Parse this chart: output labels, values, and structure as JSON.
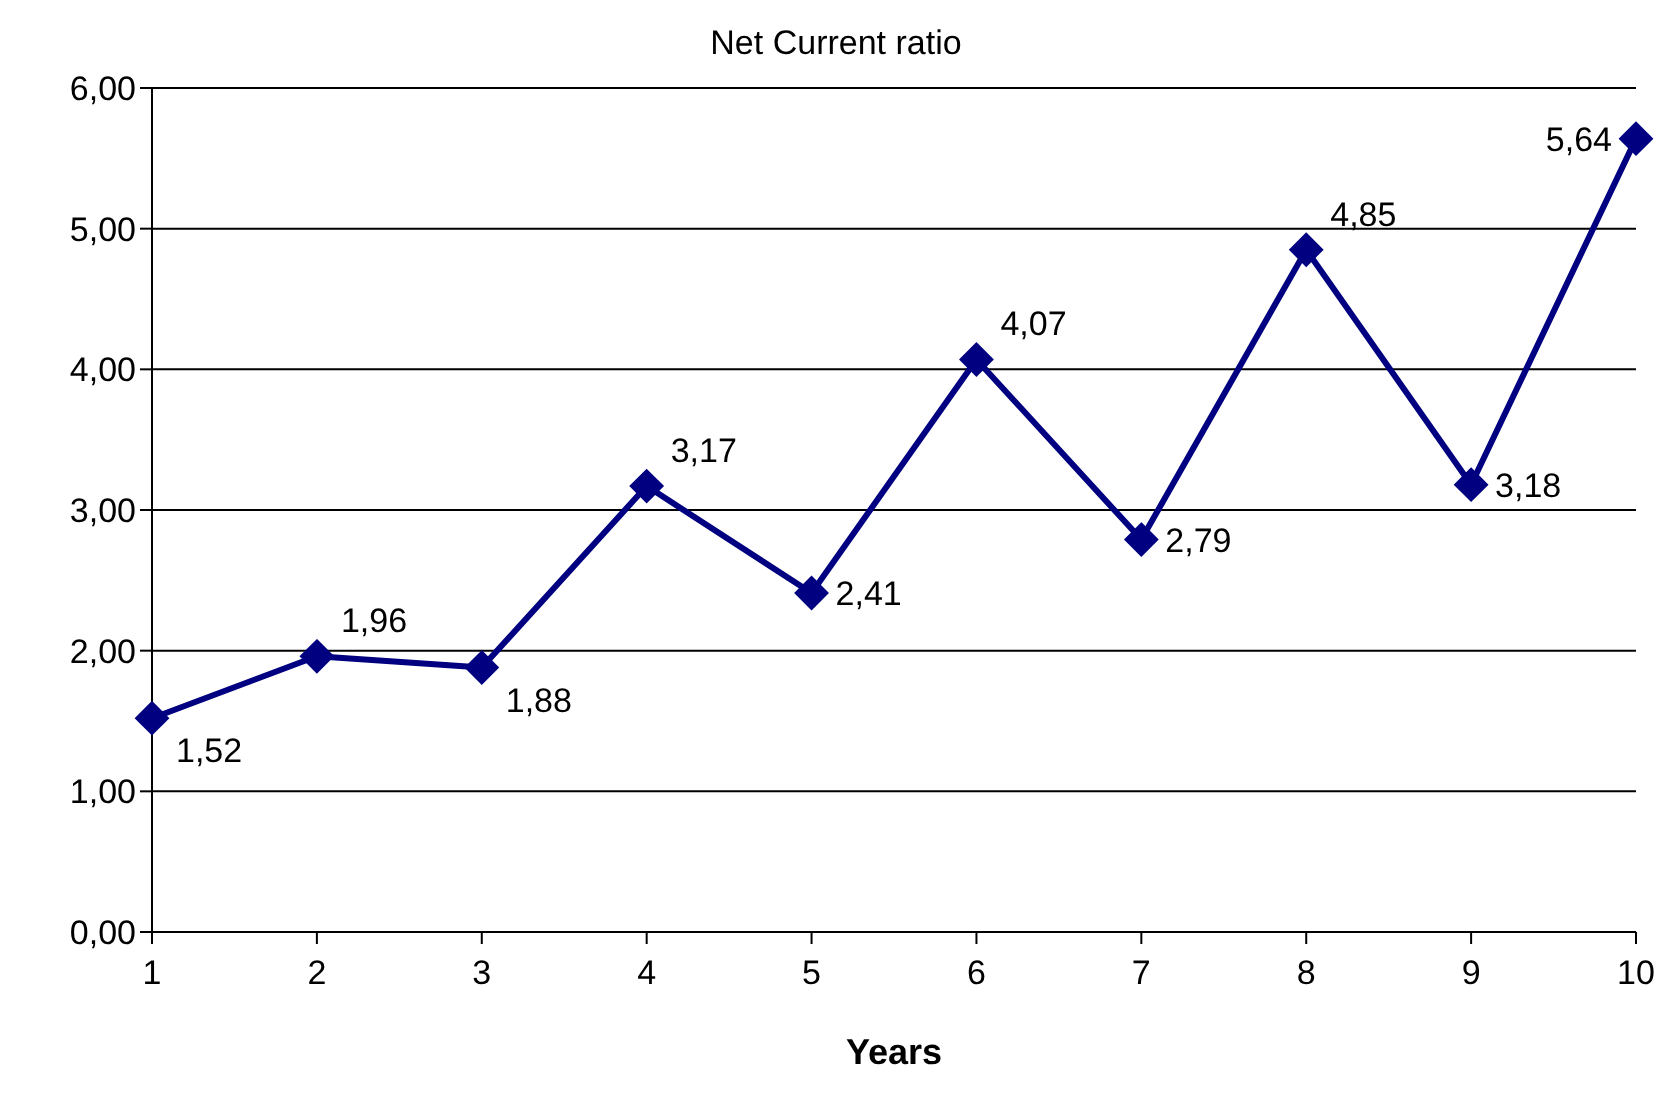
{
  "chart_data": {
    "type": "line",
    "title": "Net Current ratio",
    "xlabel": "Years",
    "categories": [
      "1",
      "2",
      "3",
      "4",
      "5",
      "6",
      "7",
      "8",
      "9",
      "10"
    ],
    "series": [
      {
        "color": "#000080",
        "values": [
          1.52,
          1.96,
          1.88,
          3.17,
          2.41,
          4.07,
          2.79,
          4.85,
          3.18,
          5.64
        ],
        "value_labels": [
          "1,52",
          "1,96",
          "1,88",
          "3,17",
          "2,41",
          "4,07",
          "2,79",
          "4,85",
          "3,18",
          "5,64"
        ]
      }
    ],
    "ylim": [
      0,
      6
    ],
    "yticks": [
      {
        "value": 0,
        "label": "0,00"
      },
      {
        "value": 1,
        "label": "1,00"
      },
      {
        "value": 2,
        "label": "2,00"
      },
      {
        "value": 3,
        "label": "3,00"
      },
      {
        "value": 4,
        "label": "4,00"
      },
      {
        "value": 5,
        "label": "5,00"
      },
      {
        "value": 6,
        "label": "6,00"
      }
    ],
    "grid": "y",
    "marker": "diamond",
    "line_style": "solid",
    "legend": false
  }
}
